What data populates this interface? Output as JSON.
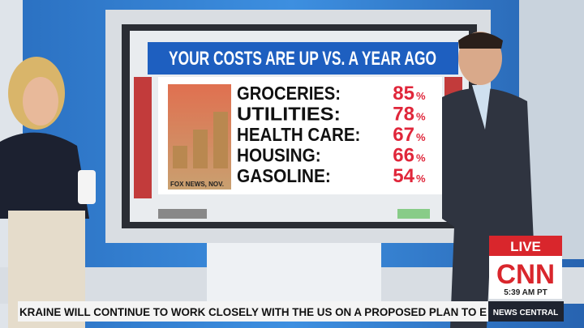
{
  "screen": {
    "title": "YOUR COSTS ARE UP VS. A YEAR AGO",
    "source": "FOX NEWS, NOV.",
    "items": [
      {
        "label": "GROCERIES:",
        "value": 85,
        "unit": "%"
      },
      {
        "label": "UTILITIES:",
        "value": 78,
        "unit": "%"
      },
      {
        "label": "HEALTH CARE:",
        "value": 67,
        "unit": "%"
      },
      {
        "label": "HOUSING:",
        "value": 66,
        "unit": "%"
      },
      {
        "label": "GASOLINE:",
        "value": 54,
        "unit": "%"
      }
    ]
  },
  "bug": {
    "live": "LIVE",
    "network": "CNN",
    "time": "5:39 AM PT"
  },
  "ticker": {
    "text": "KRAINE WILL CONTINUE TO WORK CLOSELY WITH THE US ON A PROPOSED PLAN TO E",
    "show": "NEWS CENTRAL"
  }
}
